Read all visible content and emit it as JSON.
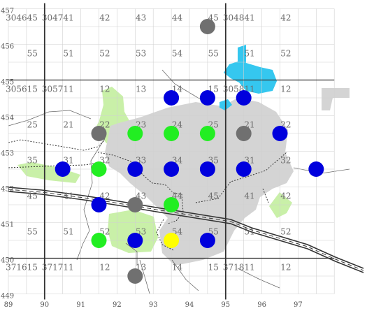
{
  "map": {
    "colors": {
      "background": "#ffffff",
      "minor_grid": "#d0d0d0",
      "major_grid": "#333333",
      "grid_label": "#6b6b6b",
      "axis_label": "#555555",
      "green_area": "#c9f0a8",
      "urban_area": "#d4d4d4",
      "water": "#35c7ef",
      "road": "#333333",
      "marker_blue": "#0000dd",
      "marker_green": "#22ee22",
      "marker_gray": "#707070",
      "marker_yellow": "#ffff00"
    },
    "x_axis": {
      "min": 89,
      "max": 98,
      "ticks": [
        "89",
        "90",
        "91",
        "92",
        "93",
        "94",
        "95",
        "96",
        "97"
      ]
    },
    "y_axis": {
      "min": 449,
      "max": 457,
      "ticks": [
        "457",
        "456",
        "455",
        "454",
        "453",
        "452",
        "451",
        "450",
        "449"
      ]
    },
    "major_grid_x": [
      90,
      95
    ],
    "major_grid_y": [
      455,
      450
    ],
    "grid_labels": [
      {
        "x": 89.5,
        "y": 456.75,
        "text": "304645"
      },
      {
        "x": 90.5,
        "y": 456.75,
        "text": "304741"
      },
      {
        "x": 91.5,
        "y": 456.75,
        "text": "42"
      },
      {
        "x": 92.5,
        "y": 456.75,
        "text": "43"
      },
      {
        "x": 93.5,
        "y": 456.75,
        "text": "44"
      },
      {
        "x": 94.5,
        "y": 456.75,
        "text": "45"
      },
      {
        "x": 95.5,
        "y": 456.75,
        "text": "304841"
      },
      {
        "x": 96.5,
        "y": 456.75,
        "text": "42"
      },
      {
        "x": 89.5,
        "y": 455.75,
        "text": "55"
      },
      {
        "x": 90.5,
        "y": 455.75,
        "text": "51"
      },
      {
        "x": 91.5,
        "y": 455.75,
        "text": "52"
      },
      {
        "x": 92.5,
        "y": 455.75,
        "text": "53"
      },
      {
        "x": 93.5,
        "y": 455.75,
        "text": "54"
      },
      {
        "x": 94.5,
        "y": 455.75,
        "text": "55"
      },
      {
        "x": 95.5,
        "y": 455.75,
        "text": "51"
      },
      {
        "x": 96.5,
        "y": 455.75,
        "text": "52"
      },
      {
        "x": 89.5,
        "y": 454.75,
        "text": "305615"
      },
      {
        "x": 90.5,
        "y": 454.75,
        "text": "305711"
      },
      {
        "x": 91.5,
        "y": 454.75,
        "text": "12"
      },
      {
        "x": 92.5,
        "y": 454.75,
        "text": "13"
      },
      {
        "x": 93.5,
        "y": 454.75,
        "text": "14"
      },
      {
        "x": 94.5,
        "y": 454.75,
        "text": "15"
      },
      {
        "x": 95.5,
        "y": 454.75,
        "text": "305811"
      },
      {
        "x": 96.5,
        "y": 454.75,
        "text": "12"
      },
      {
        "x": 89.5,
        "y": 453.75,
        "text": "25"
      },
      {
        "x": 90.5,
        "y": 453.75,
        "text": "21"
      },
      {
        "x": 91.5,
        "y": 453.75,
        "text": "22"
      },
      {
        "x": 92.5,
        "y": 453.75,
        "text": "23"
      },
      {
        "x": 93.5,
        "y": 453.75,
        "text": "24"
      },
      {
        "x": 94.5,
        "y": 453.75,
        "text": "25"
      },
      {
        "x": 95.5,
        "y": 453.75,
        "text": "21"
      },
      {
        "x": 96.5,
        "y": 453.75,
        "text": "22"
      },
      {
        "x": 89.5,
        "y": 452.75,
        "text": "35"
      },
      {
        "x": 90.5,
        "y": 452.75,
        "text": "31"
      },
      {
        "x": 91.5,
        "y": 452.75,
        "text": "32"
      },
      {
        "x": 92.5,
        "y": 452.75,
        "text": "33"
      },
      {
        "x": 93.5,
        "y": 452.75,
        "text": "34"
      },
      {
        "x": 94.5,
        "y": 452.75,
        "text": "35"
      },
      {
        "x": 95.5,
        "y": 452.75,
        "text": "31"
      },
      {
        "x": 96.5,
        "y": 452.75,
        "text": "32"
      },
      {
        "x": 89.5,
        "y": 451.75,
        "text": "45"
      },
      {
        "x": 90.5,
        "y": 451.75,
        "text": "41"
      },
      {
        "x": 91.5,
        "y": 451.75,
        "text": "42"
      },
      {
        "x": 92.5,
        "y": 451.75,
        "text": "43"
      },
      {
        "x": 93.5,
        "y": 451.75,
        "text": "44"
      },
      {
        "x": 94.5,
        "y": 451.75,
        "text": "45"
      },
      {
        "x": 95.5,
        "y": 451.75,
        "text": "41"
      },
      {
        "x": 96.5,
        "y": 451.75,
        "text": "42"
      },
      {
        "x": 89.5,
        "y": 450.75,
        "text": "55"
      },
      {
        "x": 90.5,
        "y": 450.75,
        "text": "51"
      },
      {
        "x": 91.5,
        "y": 450.75,
        "text": "52"
      },
      {
        "x": 92.5,
        "y": 450.75,
        "text": "53"
      },
      {
        "x": 93.5,
        "y": 450.75,
        "text": "54"
      },
      {
        "x": 94.5,
        "y": 450.75,
        "text": "55"
      },
      {
        "x": 95.5,
        "y": 450.75,
        "text": "51"
      },
      {
        "x": 96.5,
        "y": 450.75,
        "text": "52"
      },
      {
        "x": 89.5,
        "y": 449.75,
        "text": "371615"
      },
      {
        "x": 90.5,
        "y": 449.75,
        "text": "371711"
      },
      {
        "x": 91.5,
        "y": 449.75,
        "text": "12"
      },
      {
        "x": 92.5,
        "y": 449.75,
        "text": "13"
      },
      {
        "x": 93.5,
        "y": 449.75,
        "text": "14"
      },
      {
        "x": 94.5,
        "y": 449.75,
        "text": "15"
      },
      {
        "x": 95.5,
        "y": 449.75,
        "text": "371811"
      },
      {
        "x": 96.5,
        "y": 449.75,
        "text": "12"
      }
    ],
    "markers": [
      {
        "x": 94.5,
        "y": 456.5,
        "color": "gray"
      },
      {
        "x": 93.5,
        "y": 454.5,
        "color": "blue"
      },
      {
        "x": 94.5,
        "y": 454.5,
        "color": "blue"
      },
      {
        "x": 95.5,
        "y": 454.5,
        "color": "blue"
      },
      {
        "x": 91.5,
        "y": 453.5,
        "color": "gray"
      },
      {
        "x": 92.5,
        "y": 453.5,
        "color": "green"
      },
      {
        "x": 93.5,
        "y": 453.5,
        "color": "green"
      },
      {
        "x": 94.5,
        "y": 453.5,
        "color": "green"
      },
      {
        "x": 95.5,
        "y": 453.5,
        "color": "gray"
      },
      {
        "x": 96.5,
        "y": 453.5,
        "color": "blue"
      },
      {
        "x": 90.5,
        "y": 452.5,
        "color": "blue"
      },
      {
        "x": 91.5,
        "y": 452.5,
        "color": "green"
      },
      {
        "x": 92.5,
        "y": 452.5,
        "color": "blue"
      },
      {
        "x": 93.5,
        "y": 452.5,
        "color": "blue"
      },
      {
        "x": 94.5,
        "y": 452.5,
        "color": "blue"
      },
      {
        "x": 95.5,
        "y": 452.5,
        "color": "blue"
      },
      {
        "x": 97.5,
        "y": 452.5,
        "color": "blue"
      },
      {
        "x": 91.5,
        "y": 451.5,
        "color": "blue"
      },
      {
        "x": 92.5,
        "y": 451.5,
        "color": "gray"
      },
      {
        "x": 93.5,
        "y": 451.5,
        "color": "green"
      },
      {
        "x": 91.5,
        "y": 450.5,
        "color": "green"
      },
      {
        "x": 92.5,
        "y": 450.5,
        "color": "blue"
      },
      {
        "x": 93.5,
        "y": 450.5,
        "color": "yellow"
      },
      {
        "x": 94.5,
        "y": 450.5,
        "color": "blue"
      },
      {
        "x": 92.5,
        "y": 449.5,
        "color": "gray"
      }
    ]
  }
}
